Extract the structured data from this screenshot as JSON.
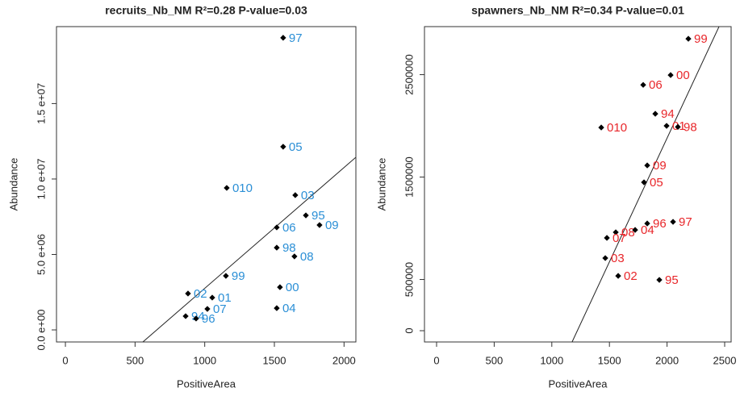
{
  "chart_data": [
    {
      "type": "scatter",
      "title": "recruits_Nb_NM  R²=0.28  P-value=0.03",
      "x_label": "PositiveArea",
      "y_label": "Abundance",
      "x": [
        1563,
        1563,
        1158,
        1650,
        1726,
        1517,
        1824,
        1517,
        1644,
        1152,
        1540,
        880,
        1054,
        1019,
        1517,
        863,
        938
      ],
      "y": [
        19360000,
        12140000,
        9410000,
        8930000,
        7590000,
        6790000,
        6950000,
        5450000,
        4870000,
        3580000,
        2830000,
        2410000,
        2140000,
        1390000,
        1440000,
        910000,
        750000
      ],
      "point_labels": [
        "97",
        "05",
        "010",
        "03",
        "95",
        "06",
        "09",
        "98",
        "08",
        "99",
        "00",
        "02",
        "01",
        "07",
        "04",
        "94",
        "96"
      ],
      "label_color": "#2b8fd6",
      "xlim": [
        -64,
        2085
      ],
      "ylim": [
        -800000,
        20100000
      ],
      "xticks": [
        0,
        500,
        1000,
        1500,
        2000
      ],
      "yticks": [
        {
          "value": 0,
          "label": "0.0 e+00"
        },
        {
          "value": 5000000,
          "label": "5.0 e+06"
        },
        {
          "value": 10000000,
          "label": "1.0 e+07"
        },
        {
          "value": 15000000,
          "label": "1.5 e+07"
        }
      ],
      "fit_line": {
        "x": [
          556,
          2085
        ],
        "y": [
          -800000,
          11440000
        ]
      }
    },
    {
      "type": "scatter",
      "title": "spawners_Nb_NM  R²=0.34  P-value=0.01",
      "x_label": "PositiveArea",
      "y_label": "Abundance",
      "x": [
        2185,
        2031,
        1793,
        1898,
        1429,
        1996,
        2094,
        1828,
        1800,
        2052,
        1828,
        1555,
        1723,
        1478,
        1464,
        1576,
        1933
      ],
      "y": [
        2850000,
        2496000,
        2400000,
        2118000,
        1984000,
        2000000,
        1990000,
        1614000,
        1449000,
        1063000,
        1047000,
        961000,
        984000,
        906000,
        709000,
        535000,
        496000
      ],
      "point_labels": [
        "99",
        "00",
        "06",
        "94",
        "010",
        "01",
        "98",
        "09",
        "05",
        "97",
        "96",
        "08",
        "04",
        "07",
        "03",
        "02",
        "95"
      ],
      "label_color": "#e8262a",
      "xlim": [
        -105,
        2556
      ],
      "ylim": [
        -110000,
        2969000
      ],
      "xticks": [
        0,
        500,
        1000,
        1500,
        2000,
        2500
      ],
      "yticks": [
        0,
        500000,
        1500000,
        2500000
      ],
      "fit_line": {
        "x": [
          1176,
          2451
        ],
        "y": [
          -110000,
          2969000
        ]
      }
    }
  ]
}
